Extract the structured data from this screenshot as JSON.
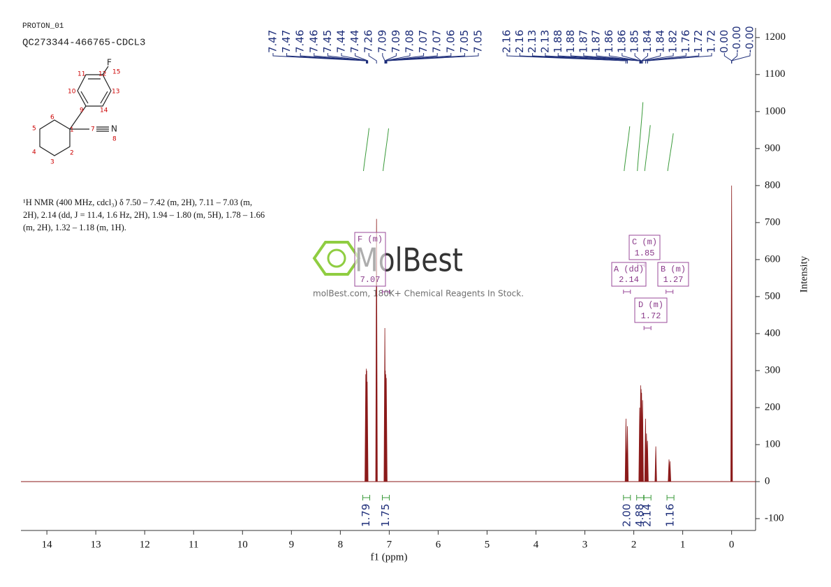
{
  "header": {
    "experiment": "PROTON_01",
    "sample": "QC273344-466765-CDCL3"
  },
  "structure": {
    "atoms": [
      "F",
      "15",
      "12",
      "11",
      "13",
      "10",
      "14",
      "9",
      "6",
      "1",
      "7",
      "N",
      "8",
      "5",
      "4",
      "2",
      "3"
    ]
  },
  "description": "¹H NMR (400 MHz, cdcl₃) δ 7.50 – 7.42 (m, 2H), 7.11 – 7.03 (m, 2H), 2.14 (dd, J = 11.4, 1.6 Hz, 2H), 1.94 – 1.80 (m, 5H), 1.78 – 1.66 (m, 2H), 1.32 – 1.18 (m, 1H).",
  "watermark": {
    "brand": "MolBest",
    "tagline": "molBest.com, 180K+ Chemical Reagents In Stock."
  },
  "chart_data": {
    "type": "nmr",
    "x_label": "f1 (ppm)",
    "y_label": "Intensity",
    "xlim": [
      14.53,
      -0.49
    ],
    "ylim": [
      -132,
      1226
    ],
    "xticks": [
      14,
      13,
      12,
      11,
      10,
      9,
      8,
      7,
      6,
      5,
      4,
      3,
      2,
      1,
      0
    ],
    "yticks": [
      -100,
      0,
      100,
      200,
      300,
      400,
      500,
      600,
      700,
      800,
      900,
      1000,
      1100,
      1200
    ],
    "color": "#8b1a1a",
    "peaks": {
      "x": [
        7.48,
        7.47,
        7.46,
        7.45,
        7.26,
        7.09,
        7.08,
        7.07,
        7.06,
        2.16,
        2.13,
        1.88,
        1.86,
        1.85,
        1.84,
        1.82,
        1.76,
        1.74,
        1.72,
        1.55,
        1.28,
        1.26,
        0.0
      ],
      "values": [
        290,
        305,
        300,
        270,
        710,
        415,
        300,
        290,
        280,
        170,
        150,
        200,
        260,
        250,
        240,
        220,
        170,
        130,
        110,
        95,
        60,
        55,
        800
      ]
    },
    "peak_labels": [
      {
        "value": 7.47,
        "label": "7.47"
      },
      {
        "value": 7.47,
        "label": "7.47"
      },
      {
        "value": 7.46,
        "label": "7.46"
      },
      {
        "value": 7.46,
        "label": "7.46"
      },
      {
        "value": 7.45,
        "label": "7.45"
      },
      {
        "value": 7.44,
        "label": "7.44"
      },
      {
        "value": 7.44,
        "label": "7.44"
      },
      {
        "value": 7.26,
        "label": "7.26"
      },
      {
        "value": 7.09,
        "label": "7.09"
      },
      {
        "value": 7.09,
        "label": "7.09"
      },
      {
        "value": 7.08,
        "label": "7.08"
      },
      {
        "value": 7.07,
        "label": "7.07"
      },
      {
        "value": 7.07,
        "label": "7.07"
      },
      {
        "value": 7.06,
        "label": "7.06"
      },
      {
        "value": 7.05,
        "label": "7.05"
      },
      {
        "value": 7.05,
        "label": "7.05"
      },
      {
        "value": 2.16,
        "label": "2.16"
      },
      {
        "value": 2.16,
        "label": "2.16"
      },
      {
        "value": 2.13,
        "label": "2.13"
      },
      {
        "value": 2.13,
        "label": "2.13"
      },
      {
        "value": 1.88,
        "label": "1.88"
      },
      {
        "value": 1.88,
        "label": "1.88"
      },
      {
        "value": 1.87,
        "label": "1.87"
      },
      {
        "value": 1.87,
        "label": "1.87"
      },
      {
        "value": 1.86,
        "label": "1.86"
      },
      {
        "value": 1.86,
        "label": "1.86"
      },
      {
        "value": 1.85,
        "label": "1.85"
      },
      {
        "value": 1.84,
        "label": "1.84"
      },
      {
        "value": 1.84,
        "label": "1.84"
      },
      {
        "value": 1.82,
        "label": "1.82"
      },
      {
        "value": 1.76,
        "label": "1.76"
      },
      {
        "value": 1.72,
        "label": "1.72"
      },
      {
        "value": 1.72,
        "label": "1.72"
      },
      {
        "value": 0,
        "label": "0.00"
      },
      {
        "value": 0,
        "label": "-0.00"
      },
      {
        "value": 0,
        "label": "-0.00"
      }
    ],
    "integrals": {
      "x": [
        7.47,
        7.07,
        2.14,
        1.87,
        1.72,
        1.25
      ],
      "values": [
        1.79,
        1.75,
        2.0,
        4.88,
        2.14,
        1.16
      ],
      "value_labels": [
        "1.79",
        "1.75",
        "2.00",
        "4.88",
        "2.14",
        "1.16"
      ]
    },
    "multiplets": [
      {
        "label": "F (m)",
        "shift": 7.07
      },
      {
        "label": "C (m)",
        "shift": 1.85
      },
      {
        "label": "A (dd)",
        "shift": 2.14
      },
      {
        "label": "B (m)",
        "shift": 1.27
      },
      {
        "label": "D (m)",
        "shift": 1.72
      }
    ]
  }
}
